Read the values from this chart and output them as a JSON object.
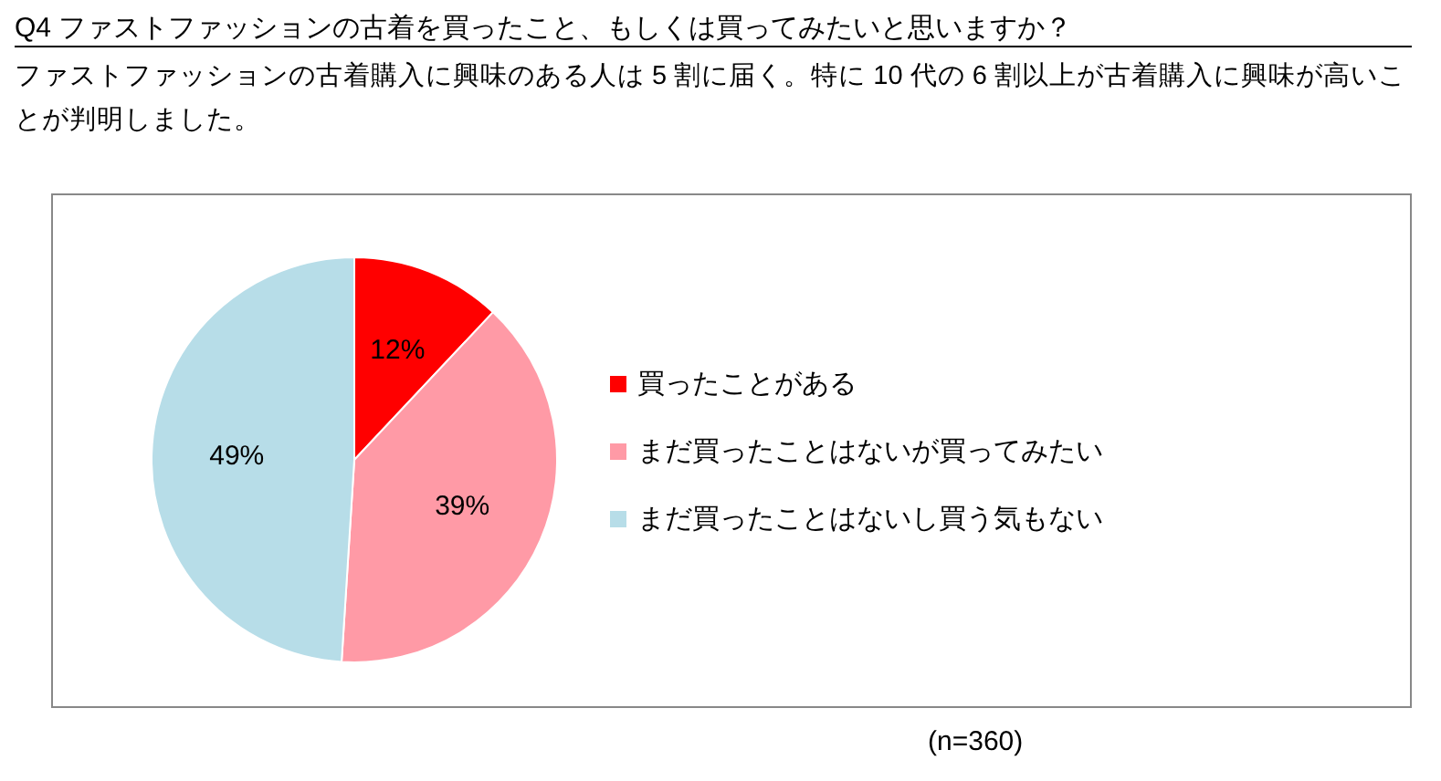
{
  "chart_data": {
    "type": "pie",
    "title": "Q4 ファストファッションの古着を買ったこと、もしくは買ってみたいと思いますか？",
    "subtitle": "ファストファッションの古着購入に興味のある人は 5 割に届く。特に 10 代の 6 割以上が古着購入に興味が高いことが判明しました。",
    "categories": [
      "買ったことがある",
      "まだ買ったことはないが買ってみたい",
      "まだ買ったことはないし買う気もない"
    ],
    "values": [
      12,
      39,
      49
    ],
    "colors": [
      "#ff0000",
      "#ff9aa6",
      "#b7dde8"
    ],
    "value_labels": [
      "12%",
      "39%",
      "49%"
    ],
    "legend": "right",
    "annotations": [
      "(n=360)"
    ]
  }
}
